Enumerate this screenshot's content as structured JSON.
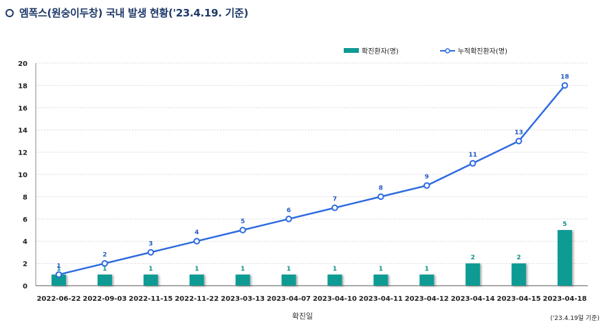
{
  "title": "엠폭스(원숭이두창) 국내 발생 현황('23.4.19. 기준)",
  "note": "('23.4.19일 기준)",
  "colors": {
    "bar": "#0d9b93",
    "line": "#2e6be0",
    "title": "#1f3a68"
  },
  "chart_data": {
    "type": "bar+line",
    "title": "엠폭스(원숭이두창) 국내 발생 현황('23.4.19. 기준)",
    "xlabel": "확진일",
    "ylabel": "",
    "ylim": [
      0,
      20
    ],
    "yticks": [
      0,
      2,
      4,
      6,
      8,
      10,
      12,
      14,
      16,
      18,
      20
    ],
    "grid": true,
    "legend_position": "top-right",
    "categories": [
      "2022-06-22",
      "2022-09-03",
      "2022-11-15",
      "2022-11-22",
      "2023-03-13",
      "2023-04-07",
      "2023-04-10",
      "2023-04-11",
      "2023-04-12",
      "2023-04-14",
      "2023-04-15",
      "2023-04-18"
    ],
    "series": [
      {
        "name": "확진환자(명)",
        "type": "bar",
        "values": [
          1,
          1,
          1,
          1,
          1,
          1,
          1,
          1,
          1,
          2,
          2,
          5
        ]
      },
      {
        "name": "누적확진환자(명)",
        "type": "line",
        "values": [
          1,
          2,
          3,
          4,
          5,
          6,
          7,
          8,
          9,
          11,
          13,
          18
        ]
      }
    ]
  }
}
